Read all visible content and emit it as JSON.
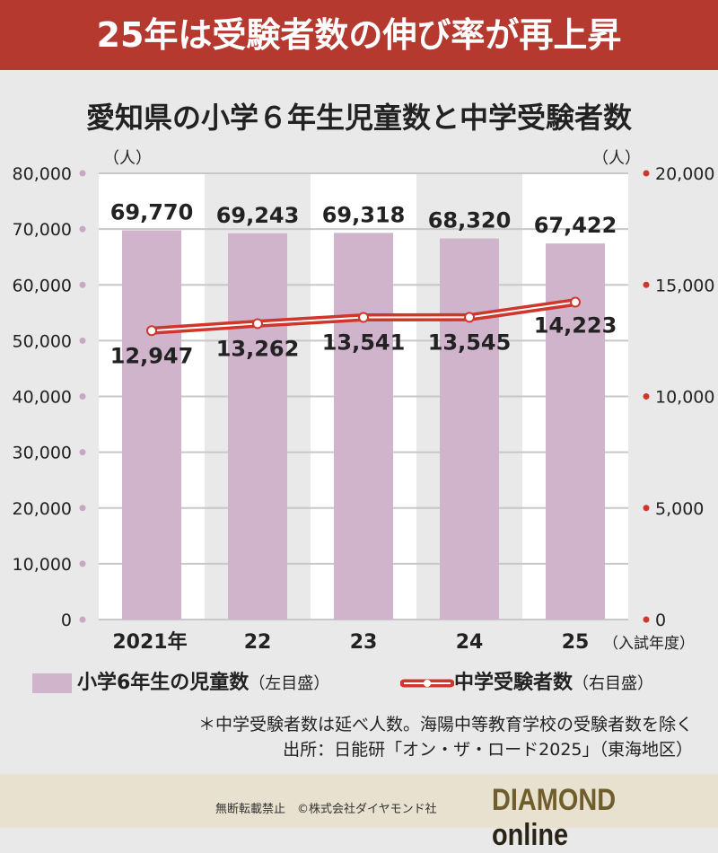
{
  "header": {
    "title": "25年は受験者数の伸び率が再上昇"
  },
  "chart_data": {
    "type": "bar+line",
    "title": "愛知県の小学６年生児童数と中学受験者数",
    "categories": [
      "2021年",
      "22",
      "23",
      "24",
      "25"
    ],
    "xlabel": "（入試年度）",
    "left_unit": "（人）",
    "right_unit": "（人）",
    "left_ylim": [
      0,
      80000
    ],
    "right_ylim": [
      0,
      20000
    ],
    "left_ticks": [
      "0",
      "10,000",
      "20,000",
      "30,000",
      "40,000",
      "50,000",
      "60,000",
      "70,000",
      "80,000"
    ],
    "right_ticks": [
      "0",
      "5,000",
      "10,000",
      "15,000",
      "20,000"
    ],
    "series": [
      {
        "name": "小学6年生の児童数",
        "axis_note": "（左目盛）",
        "type": "bar",
        "values": [
          69770,
          69243,
          69318,
          68320,
          67422
        ],
        "labels": [
          "69,770",
          "69,243",
          "69,318",
          "68,320",
          "67,422"
        ],
        "color": "#cfb4cc"
      },
      {
        "name": "中学受験者数",
        "axis_note": "（右目盛）",
        "type": "line",
        "values": [
          12947,
          13262,
          13541,
          13545,
          14223
        ],
        "labels": [
          "12,947",
          "13,262",
          "13,541",
          "13,545",
          "14,223"
        ],
        "color": "#d0372c"
      }
    ]
  },
  "notes": [
    "＊中学受験者数は延べ人数。海陽中等教育学校の受験者数を除く",
    "出所：日能研「オン・ザ・ロード2025」（東海地区）"
  ],
  "footer": {
    "copyright": "無断転載禁止　©株式会社ダイヤモンド社",
    "logo_a": "DIAMOND",
    "logo_b": "online"
  }
}
